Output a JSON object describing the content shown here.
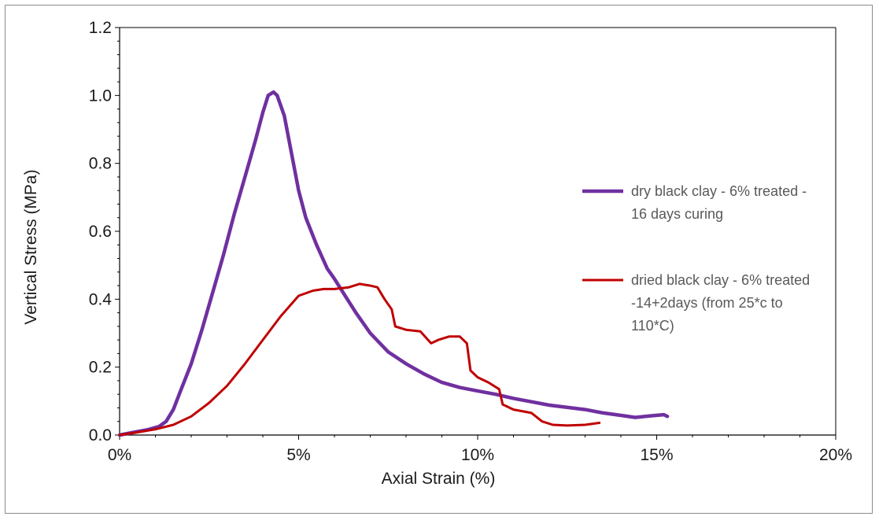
{
  "chart_data": {
    "type": "line",
    "title": "",
    "xlabel": "Axial Strain (%)",
    "ylabel": "Vertical Stress (MPa)",
    "xlim": [
      0,
      0.2
    ],
    "ylim": [
      0,
      1.2
    ],
    "x_ticks": [
      0,
      0.05,
      0.1,
      0.15,
      0.2
    ],
    "x_tick_labels": [
      "0%",
      "5%",
      "10%",
      "15%",
      "20%"
    ],
    "y_ticks": [
      0,
      0.2,
      0.4,
      0.6,
      0.8,
      1.0,
      1.2
    ],
    "y_tick_labels": [
      "0.0",
      "0.2",
      "0.4",
      "0.6",
      "0.8",
      "1.0",
      "1.2"
    ],
    "grid": false,
    "legend_position": "right",
    "series": [
      {
        "name": "dry black clay - 6% treated - 16 days curing",
        "legend_lines": [
          "dry black clay - 6% treated -",
          "16 days curing"
        ],
        "color": "#7030a0",
        "points": [
          [
            0,
            0.0
          ],
          [
            0.004,
            0.008
          ],
          [
            0.008,
            0.016
          ],
          [
            0.011,
            0.025
          ],
          [
            0.013,
            0.04
          ],
          [
            0.015,
            0.075
          ],
          [
            0.017,
            0.13
          ],
          [
            0.02,
            0.21
          ],
          [
            0.023,
            0.31
          ],
          [
            0.026,
            0.42
          ],
          [
            0.029,
            0.53
          ],
          [
            0.032,
            0.65
          ],
          [
            0.035,
            0.76
          ],
          [
            0.038,
            0.87
          ],
          [
            0.04,
            0.95
          ],
          [
            0.0415,
            1.0
          ],
          [
            0.043,
            1.01
          ],
          [
            0.044,
            1.0
          ],
          [
            0.046,
            0.94
          ],
          [
            0.048,
            0.83
          ],
          [
            0.05,
            0.72
          ],
          [
            0.052,
            0.64
          ],
          [
            0.055,
            0.56
          ],
          [
            0.058,
            0.49
          ],
          [
            0.06,
            0.46
          ],
          [
            0.063,
            0.41
          ],
          [
            0.066,
            0.36
          ],
          [
            0.07,
            0.3
          ],
          [
            0.075,
            0.245
          ],
          [
            0.08,
            0.21
          ],
          [
            0.085,
            0.18
          ],
          [
            0.09,
            0.155
          ],
          [
            0.095,
            0.14
          ],
          [
            0.1,
            0.13
          ],
          [
            0.105,
            0.12
          ],
          [
            0.11,
            0.108
          ],
          [
            0.115,
            0.098
          ],
          [
            0.12,
            0.088
          ],
          [
            0.13,
            0.075
          ],
          [
            0.135,
            0.065
          ],
          [
            0.14,
            0.058
          ],
          [
            0.144,
            0.052
          ],
          [
            0.148,
            0.056
          ],
          [
            0.152,
            0.06
          ],
          [
            0.153,
            0.055
          ]
        ]
      },
      {
        "name": "dried black clay - 6% treated -14+2days (from 25*c to 110*C)",
        "legend_lines": [
          "dried black clay - 6% treated",
          "-14+2days (from 25*c to",
          "110*C)"
        ],
        "color": "#c00000",
        "points": [
          [
            0,
            0.0
          ],
          [
            0.005,
            0.008
          ],
          [
            0.01,
            0.017
          ],
          [
            0.015,
            0.03
          ],
          [
            0.02,
            0.055
          ],
          [
            0.025,
            0.095
          ],
          [
            0.03,
            0.145
          ],
          [
            0.035,
            0.21
          ],
          [
            0.04,
            0.28
          ],
          [
            0.045,
            0.35
          ],
          [
            0.05,
            0.41
          ],
          [
            0.054,
            0.425
          ],
          [
            0.057,
            0.43
          ],
          [
            0.06,
            0.43
          ],
          [
            0.064,
            0.435
          ],
          [
            0.067,
            0.445
          ],
          [
            0.07,
            0.44
          ],
          [
            0.072,
            0.435
          ],
          [
            0.074,
            0.4
          ],
          [
            0.076,
            0.37
          ],
          [
            0.077,
            0.32
          ],
          [
            0.08,
            0.31
          ],
          [
            0.084,
            0.305
          ],
          [
            0.087,
            0.27
          ],
          [
            0.089,
            0.28
          ],
          [
            0.092,
            0.29
          ],
          [
            0.095,
            0.29
          ],
          [
            0.097,
            0.27
          ],
          [
            0.098,
            0.19
          ],
          [
            0.1,
            0.17
          ],
          [
            0.103,
            0.155
          ],
          [
            0.106,
            0.135
          ],
          [
            0.107,
            0.09
          ],
          [
            0.11,
            0.075
          ],
          [
            0.115,
            0.065
          ],
          [
            0.118,
            0.04
          ],
          [
            0.121,
            0.03
          ],
          [
            0.125,
            0.028
          ],
          [
            0.13,
            0.03
          ],
          [
            0.134,
            0.036
          ]
        ]
      }
    ]
  }
}
